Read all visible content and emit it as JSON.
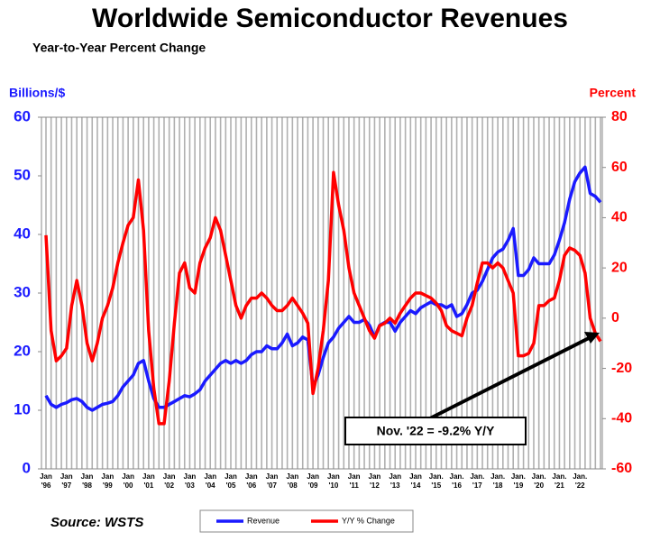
{
  "chart_data": {
    "type": "line",
    "title": "Worldwide Semiconductor Revenues",
    "subtitle": "Year-to-Year Percent Change",
    "y_label": "Billions/$",
    "y2_label": "Percent",
    "source": "Source: WSTS",
    "annotation": "Nov. '22 = -9.2% Y/Y",
    "grid": true,
    "categories": [
      "Jan '96",
      null,
      null,
      null,
      "Jan '97",
      null,
      null,
      null,
      "Jan '98",
      null,
      null,
      null,
      "Jan '99",
      null,
      null,
      null,
      "Jan '00",
      null,
      null,
      null,
      "Jan '01",
      null,
      null,
      null,
      "Jan '02",
      null,
      null,
      null,
      "Jan '03",
      null,
      null,
      null,
      "Jan '04",
      null,
      null,
      null,
      "Jan '05",
      null,
      null,
      null,
      "Jan '06",
      null,
      null,
      null,
      "Jan '07",
      null,
      null,
      null,
      "Jan '08",
      null,
      null,
      null,
      "Jan '09",
      null,
      null,
      null,
      "Jan '10",
      null,
      null,
      null,
      "Jan '11",
      null,
      null,
      null,
      "Jan '12",
      null,
      null,
      null,
      "Jan '13",
      null,
      null,
      null,
      "Jan '14",
      null,
      null,
      null,
      "Jan. '15",
      null,
      null,
      null,
      "Jan. '16",
      null,
      null,
      null,
      "Jan. '17",
      null,
      null,
      null,
      "Jan. '18",
      null,
      null,
      null,
      "Jan. '19",
      null,
      null,
      null,
      "Jan. '20",
      null,
      null,
      null,
      "Jan. '21",
      null,
      null,
      null,
      "Jan. '22",
      null,
      null,
      null,
      null
    ],
    "ylim": [
      0,
      60
    ],
    "yticks": [
      0,
      10,
      20,
      30,
      40,
      50,
      60
    ],
    "y2lim": [
      -60,
      80
    ],
    "y2ticks": [
      -60,
      -40,
      -20,
      0,
      20,
      40,
      60,
      80
    ],
    "series": [
      {
        "name": "Revenue",
        "color": "#1a1aff",
        "values": [
          12.5,
          11,
          10.5,
          11,
          11.3,
          11.8,
          12,
          11.5,
          10.5,
          10,
          10.5,
          11,
          11.2,
          11.5,
          12.5,
          14,
          15,
          16,
          18,
          18.5,
          15,
          12,
          10.5,
          10.5,
          11,
          11.5,
          12,
          12.5,
          12.3,
          12.8,
          13.5,
          15,
          16,
          17,
          18,
          18.5,
          18,
          18.5,
          18,
          18.5,
          19.5,
          20,
          20,
          21,
          20.5,
          20.5,
          21.5,
          23,
          21,
          21.5,
          22.5,
          22,
          14,
          16,
          19,
          21.5,
          22.5,
          24,
          25,
          26,
          25,
          25,
          25.5,
          24.5,
          22.5,
          24.5,
          25,
          25,
          23.5,
          25,
          26,
          27,
          26.5,
          27.5,
          28,
          28.5,
          28,
          28,
          27.5,
          28,
          26,
          26.5,
          28,
          30,
          30.5,
          32,
          34,
          36,
          37,
          37.5,
          39,
          41,
          33,
          33,
          34,
          36,
          35,
          35,
          35,
          36.5,
          39,
          42,
          46,
          49,
          50.5,
          51.5,
          47,
          46.5,
          45.5
        ]
      },
      {
        "name": "Y/Y % Change",
        "color": "#ff0000",
        "axis": "y2",
        "values": [
          33,
          -5,
          -17,
          -15,
          -12,
          5,
          15,
          5,
          -10,
          -17,
          -10,
          0,
          5,
          12,
          22,
          30,
          37,
          40,
          55,
          35,
          -5,
          -28,
          -42,
          -42,
          -25,
          -2,
          18,
          22,
          12,
          10,
          22,
          28,
          32,
          40,
          35,
          25,
          15,
          5,
          0,
          5,
          8,
          8,
          10,
          8,
          5,
          3,
          3,
          5,
          8,
          5,
          2,
          -2,
          -30,
          -20,
          -5,
          15,
          58,
          45,
          35,
          20,
          10,
          5,
          0,
          -5,
          -8,
          -3,
          -2,
          0,
          -2,
          2,
          5,
          8,
          10,
          10,
          9,
          8,
          6,
          3,
          -3,
          -5,
          -6,
          -7,
          0,
          5,
          14,
          22,
          22,
          20,
          22,
          20,
          15,
          10,
          -15,
          -15,
          -14,
          -10,
          5,
          5,
          7,
          8,
          15,
          25,
          28,
          27,
          25,
          18,
          0,
          -6,
          -9.2
        ]
      }
    ]
  }
}
